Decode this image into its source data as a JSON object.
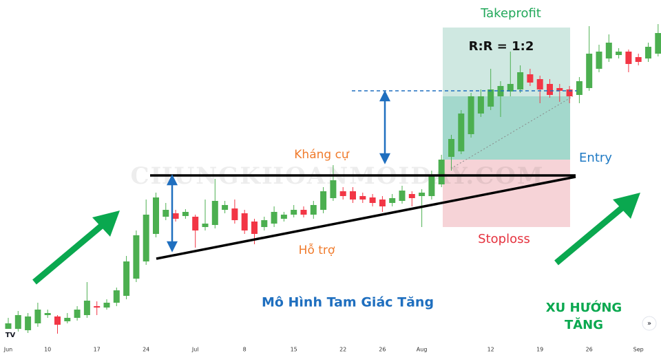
{
  "chart_data": {
    "type": "candlestick",
    "categories": [
      "Jun",
      null,
      null,
      null,
      "10",
      null,
      null,
      null,
      null,
      "17",
      null,
      null,
      null,
      null,
      "24",
      null,
      null,
      null,
      null,
      "Jul",
      null,
      null,
      null,
      null,
      "8",
      null,
      null,
      null,
      null,
      "15",
      null,
      null,
      null,
      null,
      "22",
      null,
      null,
      null,
      "26",
      null,
      null,
      null,
      "Aug",
      null,
      null,
      null,
      null,
      null,
      null,
      "12",
      null,
      null,
      null,
      null,
      "19",
      null,
      null,
      null,
      null,
      "26",
      null,
      null,
      null,
      null,
      "Sep",
      null,
      null
    ],
    "open": [
      2,
      4.4,
      4,
      6,
      8.4,
      8,
      6.6,
      7.6,
      8.4,
      11,
      10.6,
      12,
      14,
      19,
      24,
      32,
      37,
      38,
      37.2,
      37,
      34,
      34.6,
      39,
      39.4,
      38,
      35.6,
      34,
      35,
      36.4,
      37.6,
      39,
      37.6,
      39,
      42.4,
      44.4,
      44.4,
      43,
      42.6,
      42,
      41,
      41.6,
      43.6,
      43,
      43,
      46.4,
      54.4,
      56,
      61,
      67,
      69,
      72,
      73.4,
      74,
      78.4,
      77,
      75.6,
      74.4,
      74,
      72.4,
      74.4,
      80,
      83,
      84,
      85,
      83.4,
      83,
      84.4
    ],
    "high": [
      7.6,
      9.6,
      9,
      12,
      10,
      8.4,
      9,
      11,
      18,
      12.4,
      13,
      16.4,
      25.6,
      33,
      42,
      44,
      41,
      39,
      39.2,
      37.6,
      42,
      48,
      41.6,
      42,
      39,
      36.4,
      37,
      40,
      38.4,
      40.4,
      40,
      41.6,
      45.6,
      52,
      45.6,
      45.6,
      44,
      43.6,
      43,
      43.6,
      46,
      44.4,
      45,
      50.4,
      55,
      60.8,
      68,
      73,
      74,
      80,
      76.4,
      85,
      81,
      80,
      78,
      77,
      75.6,
      75,
      77.6,
      92.4,
      87,
      90,
      86,
      85.6,
      84.4,
      87.6,
      93
    ],
    "low": [
      1,
      3.6,
      3.2,
      5,
      7.6,
      3,
      6,
      6.8,
      7.6,
      8.4,
      10,
      11,
      13,
      18,
      23,
      31,
      36,
      35.6,
      36.4,
      28,
      33,
      33.6,
      38,
      35,
      32,
      29,
      33,
      34,
      35.6,
      36.8,
      36.8,
      36.4,
      38,
      41.6,
      42,
      41,
      41,
      40,
      38.4,
      40,
      40.8,
      40,
      34,
      42,
      45.6,
      50.4,
      55.2,
      60,
      66,
      68,
      66,
      72,
      73,
      75,
      70,
      71.6,
      70.4,
      70,
      70,
      73.6,
      79,
      82,
      83,
      79,
      81,
      82,
      83.6
    ],
    "close": [
      6,
      8.4,
      8,
      10,
      9,
      5.6,
      7.6,
      10,
      12.6,
      10.6,
      12,
      15.6,
      24,
      31.6,
      37.6,
      42.6,
      39,
      36.4,
      38.4,
      33,
      35,
      41.6,
      40.4,
      36,
      33,
      32,
      36,
      38.4,
      37.6,
      39,
      37.6,
      40.4,
      44.4,
      47.6,
      43,
      42,
      42,
      41,
      40,
      42.4,
      44.6,
      42.4,
      44,
      49,
      53.6,
      59.6,
      67,
      72,
      72,
      74,
      75,
      75.6,
      79,
      76,
      74,
      72.4,
      73.6,
      72,
      76.4,
      84.4,
      85,
      87.6,
      85,
      81.4,
      82,
      86.4,
      90.4
    ],
    "ylim": [
      0,
      100
    ],
    "up_color": "#4caf50",
    "down_color": "#f23645",
    "watermark": "CHUNGKHOANMOIDAY.COM",
    "annotations": [
      "Takeprofit",
      "R:R = 1:2",
      "Entry",
      "Stoploss",
      "Kháng cự",
      "Hỗ trợ",
      "Mô Hình Tam Giác Tăng",
      "XU HƯỚNG",
      "TĂNG"
    ]
  }
}
